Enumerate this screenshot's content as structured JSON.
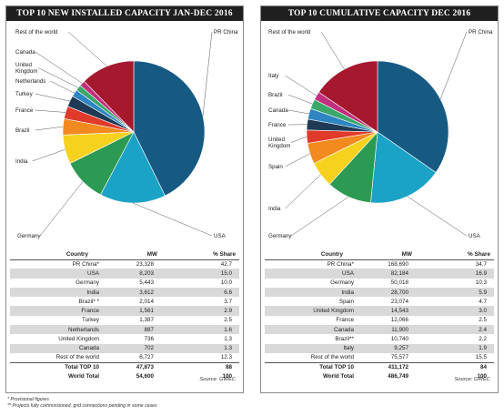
{
  "footnotes": [
    "* Provisional figures",
    "** Projects fully commissioned, grid connections pending in some cases"
  ],
  "chart_data": [
    {
      "type": "pie",
      "title": "TOP 10 NEW INSTALLED CAPACITY JAN-DEC 2016",
      "unit": "MW",
      "labels": [
        "PR China",
        "USA",
        "Germany",
        "India",
        "Brazil",
        "France",
        "Turkey",
        "Netherlands",
        "United Kingdom",
        "Canada",
        "Rest of the world"
      ],
      "values": [
        23328,
        8203,
        5443,
        3612,
        2014,
        1561,
        1387,
        887,
        736,
        702,
        6727
      ],
      "colors": [
        "#165a84",
        "#1aa3c6",
        "#2c9a52",
        "#f6d21e",
        "#f28a1f",
        "#e03a2a",
        "#1e3a55",
        "#2d86c2",
        "#3aa86b",
        "#c12f7d",
        "#a5182e"
      ],
      "table": {
        "headers": [
          "Country",
          "MW",
          "% Share"
        ],
        "rows": [
          [
            "PR China*",
            "23,328",
            "42.7"
          ],
          [
            "USA",
            "8,203",
            "15.0"
          ],
          [
            "Germany",
            "5,443",
            "10.0"
          ],
          [
            "India",
            "3,612",
            "6.6"
          ],
          [
            "Brazil* *",
            "2,014",
            "3.7"
          ],
          [
            "France",
            "1,561",
            "2.9"
          ],
          [
            "Turkey",
            "1,387",
            "2.5"
          ],
          [
            "Netherlands",
            "887",
            "1.6"
          ],
          [
            "United Kingdom",
            "736",
            "1.3"
          ],
          [
            "Canada",
            "702",
            "1.3"
          ],
          [
            "Rest of the world",
            "6,727",
            "12.3"
          ]
        ],
        "totals": [
          [
            "Total TOP 10",
            "47,873",
            "88"
          ],
          [
            "World Total",
            "54,600",
            "100"
          ]
        ],
        "source": "Source: GWEC"
      }
    },
    {
      "type": "pie",
      "title": "TOP 10 CUMULATIVE CAPACITY DEC 2016",
      "unit": "MW",
      "labels": [
        "PR China",
        "USA",
        "Germany",
        "India",
        "Spain",
        "United Kingdom",
        "France",
        "Canada",
        "Brazil",
        "Italy",
        "Rest of the world"
      ],
      "values": [
        168690,
        82184,
        50018,
        28700,
        23074,
        14543,
        12066,
        11900,
        10740,
        9257,
        75577
      ],
      "colors": [
        "#165a84",
        "#1aa3c6",
        "#2c9a52",
        "#f6d21e",
        "#f28a1f",
        "#e03a2a",
        "#1e3a55",
        "#2d86c2",
        "#3aa86b",
        "#c12f7d",
        "#a5182e"
      ],
      "table": {
        "headers": [
          "Country",
          "MW",
          "% Share"
        ],
        "rows": [
          [
            "PR China*",
            "168,690",
            "34.7"
          ],
          [
            "USA",
            "82,184",
            "16.9"
          ],
          [
            "Germany",
            "50,018",
            "10.3"
          ],
          [
            "India",
            "28,700",
            "5.9"
          ],
          [
            "Spain",
            "23,074",
            "4.7"
          ],
          [
            "United Kingdom",
            "14,543",
            "3.0"
          ],
          [
            "France",
            "12,066",
            "2.5"
          ],
          [
            "Canada",
            "11,900",
            "2.4"
          ],
          [
            "Brazil**",
            "10,740",
            "2.2"
          ],
          [
            "Italy",
            "9,257",
            "1.9"
          ],
          [
            "Rest of the world",
            "75,577",
            "15.5"
          ]
        ],
        "totals": [
          [
            "Total TOP 10",
            "411,172",
            "84"
          ],
          [
            "World Total",
            "486,749",
            "100"
          ]
        ],
        "source": "Source: GWEC"
      }
    }
  ]
}
